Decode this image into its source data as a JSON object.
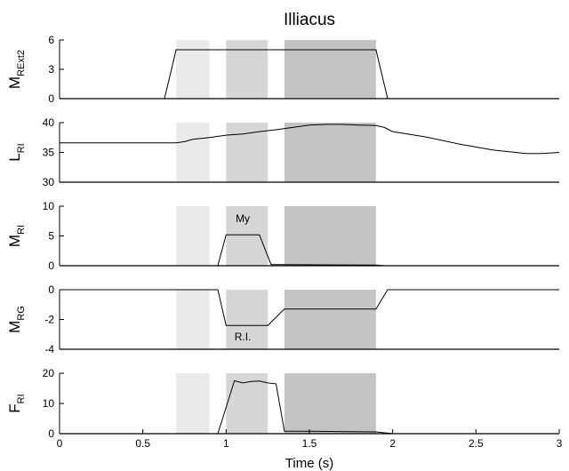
{
  "chart_data": {
    "type": "line",
    "title": "Illiacus",
    "xlabel": "Time (s)",
    "xlim": [
      0,
      3
    ],
    "xticks": [
      "0",
      "0.5",
      "1",
      "1.5",
      "2",
      "2.5",
      "3"
    ],
    "xtick_values": [
      0,
      0.5,
      1,
      1.5,
      2,
      2.5,
      3
    ],
    "shaded_intervals": [
      {
        "start": 0.7,
        "end": 0.9,
        "color": "#eaeaea"
      },
      {
        "start": 1.0,
        "end": 1.25,
        "color": "#d6d6d6"
      },
      {
        "start": 1.35,
        "end": 1.9,
        "color": "#c4c4c4"
      }
    ],
    "line_color": "#000000",
    "panels": [
      {
        "ylabel_main": "M",
        "ylabel_sub": "RExt2",
        "ylim": [
          0,
          6
        ],
        "yticks": [
          "0",
          "3",
          "6"
        ],
        "ytick_values": [
          0,
          3,
          6
        ],
        "x": [
          0,
          0.63,
          0.7,
          1.9,
          1.97,
          3
        ],
        "y": [
          0,
          0,
          5,
          5,
          0,
          0
        ],
        "annotations": []
      },
      {
        "ylabel_main": "L",
        "ylabel_sub": "RI",
        "ylim": [
          30,
          40
        ],
        "yticks": [
          "30",
          "35",
          "40"
        ],
        "ytick_values": [
          30,
          35,
          40
        ],
        "x": [
          0,
          0.7,
          0.75,
          0.8,
          0.9,
          1.0,
          1.1,
          1.2,
          1.3,
          1.4,
          1.5,
          1.6,
          1.7,
          1.8,
          1.9,
          1.95,
          2.0,
          2.2,
          2.4,
          2.6,
          2.8,
          2.9,
          3.0
        ],
        "y": [
          36.6,
          36.6,
          36.8,
          37.2,
          37.5,
          37.9,
          38.1,
          38.5,
          38.8,
          39.2,
          39.6,
          39.7,
          39.7,
          39.6,
          39.5,
          39.2,
          38.5,
          37.6,
          36.4,
          35.4,
          34.8,
          34.8,
          35.0
        ],
        "annotations": []
      },
      {
        "ylabel_main": "M",
        "ylabel_sub": "RI",
        "ylim": [
          0,
          10
        ],
        "yticks": [
          "0",
          "5",
          "10"
        ],
        "ytick_values": [
          0,
          5,
          10
        ],
        "x": [
          0,
          0.95,
          1.0,
          1.2,
          1.27,
          1.33,
          1.9,
          1.95,
          3
        ],
        "y": [
          0,
          0,
          5.2,
          5.2,
          0.2,
          0.2,
          0.1,
          0,
          0
        ],
        "annotations": [
          {
            "text": "My",
            "x": 1.1,
            "y": 7.3
          }
        ]
      },
      {
        "ylabel_main": "M",
        "ylabel_sub": "RG",
        "ylim": [
          -4,
          0
        ],
        "yticks": [
          "-4",
          "-2",
          "0"
        ],
        "ytick_values": [
          -4,
          -2,
          0
        ],
        "x": [
          0,
          0.95,
          1.0,
          1.25,
          1.35,
          1.9,
          1.97,
          3
        ],
        "y": [
          0,
          0,
          -2.4,
          -2.4,
          -1.3,
          -1.3,
          0,
          0
        ],
        "annotations": [
          {
            "text": "R.I.",
            "x": 1.1,
            "y": -3.4
          }
        ]
      },
      {
        "ylabel_main": "F",
        "ylabel_sub": "RI",
        "ylim": [
          0,
          20
        ],
        "yticks": [
          "0",
          "10",
          "20"
        ],
        "ytick_values": [
          0,
          10,
          20
        ],
        "x": [
          0,
          0.95,
          1.05,
          1.1,
          1.15,
          1.2,
          1.25,
          1.3,
          1.35,
          1.5,
          1.9,
          2.0,
          3
        ],
        "y": [
          0,
          0,
          17.5,
          16.8,
          17.3,
          17.4,
          16.8,
          16.5,
          0.8,
          0.8,
          0.6,
          0,
          0
        ],
        "annotations": []
      }
    ]
  }
}
